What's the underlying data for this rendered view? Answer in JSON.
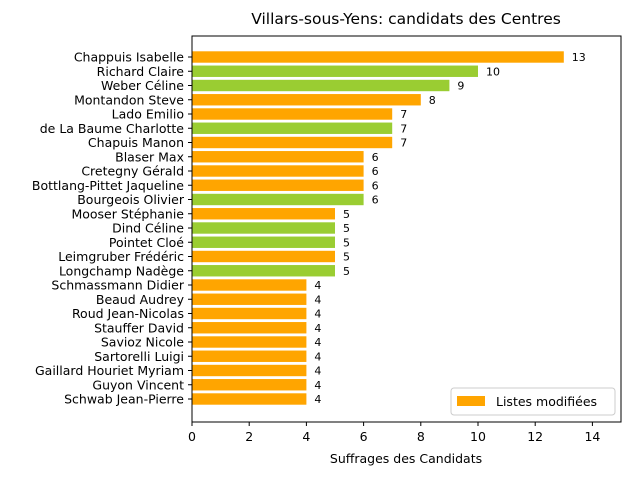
{
  "chart_data": {
    "type": "bar",
    "orientation": "horizontal",
    "title": "Villars-sous-Yens: candidats des Centres",
    "xlabel": "Suffrages des Candidats",
    "ylabel": "",
    "xlim": [
      0,
      15
    ],
    "xticks": [
      0,
      2,
      4,
      6,
      8,
      10,
      12,
      14
    ],
    "grid": false,
    "legend": {
      "position": "bottom-right",
      "entries": [
        {
          "label": "Listes modifiées",
          "color": "#ffa500"
        }
      ]
    },
    "colors": {
      "orange": "#ffa500",
      "green": "#9acd32"
    },
    "categories": [
      "Chappuis Isabelle",
      "Richard Claire",
      "Weber Céline",
      "Montandon Steve",
      "Lado Emilio",
      "de La Baume Charlotte",
      "Chapuis Manon",
      "Blaser Max",
      "Cretegny Gérald",
      "Bottlang-Pittet Jaqueline",
      "Bourgeois Olivier",
      "Mooser Stéphanie",
      "Dind Céline",
      "Pointet Cloé",
      "Leimgruber Frédéric",
      "Longchamp Nadège",
      "Schmassmann Didier",
      "Beaud Audrey",
      "Roud Jean-Nicolas",
      "Stauffer David",
      "Savioz Nicole",
      "Sartorelli Luigi",
      "Gaillard Houriet Myriam",
      "Guyon Vincent",
      "Schwab Jean-Pierre"
    ],
    "values": [
      13,
      10,
      9,
      8,
      7,
      7,
      7,
      6,
      6,
      6,
      6,
      5,
      5,
      5,
      5,
      5,
      4,
      4,
      4,
      4,
      4,
      4,
      4,
      4,
      4
    ],
    "bar_colors": [
      "orange",
      "green",
      "green",
      "orange",
      "orange",
      "green",
      "orange",
      "orange",
      "orange",
      "orange",
      "green",
      "orange",
      "green",
      "green",
      "orange",
      "green",
      "orange",
      "orange",
      "orange",
      "orange",
      "orange",
      "orange",
      "orange",
      "orange",
      "orange"
    ]
  }
}
